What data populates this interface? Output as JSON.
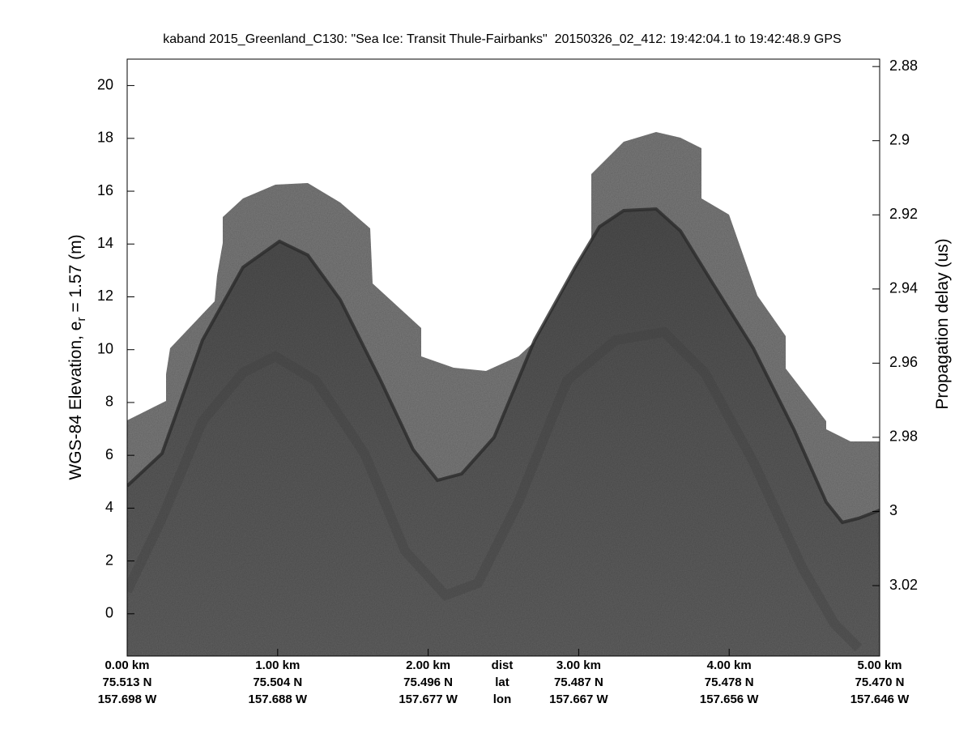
{
  "chart_data": {
    "type": "echogram",
    "title": "kaband 2015_Greenland_C130: \"Sea Ice: Transit Thule-Fairbanks\"  20150326_02_412: 19:42:04.1 to 19:42:48.9 GPS",
    "ylabel": [
      "WGS-84 Elevation, e",
      "r",
      " = 1.57 (m)"
    ],
    "y2label": "Propagation delay (us)",
    "ylim": [
      -1.6,
      21
    ],
    "yticks": [
      0,
      2,
      4,
      6,
      8,
      10,
      12,
      14,
      16,
      18,
      20
    ],
    "y2lim": [
      3.039,
      2.878
    ],
    "y2ticks": [
      2.88,
      2.9,
      2.92,
      2.94,
      2.96,
      2.98,
      3,
      3.02
    ],
    "xlim": [
      0,
      5
    ],
    "xticks": [
      {
        "value": 0,
        "label": "0.00 km"
      },
      {
        "value": 1,
        "label": "1.00 km"
      },
      {
        "value": 2,
        "label": "2.00 km"
      },
      {
        "value": 3,
        "label": "3.00 km"
      },
      {
        "value": 4,
        "label": "4.00 km"
      },
      {
        "value": 5,
        "label": "5.00 km"
      }
    ],
    "xtick_lat": [
      "75.513 N",
      "75.504 N",
      "75.496 N",
      "75.487 N",
      "75.478 N",
      "75.470 N"
    ],
    "xtick_lon": [
      "157.698 W",
      "157.688 W",
      "157.677 W",
      "157.667 W",
      "157.656 W",
      "157.646 W"
    ],
    "xtick_row_names": [
      "dist",
      "lat",
      "lon"
    ]
  }
}
